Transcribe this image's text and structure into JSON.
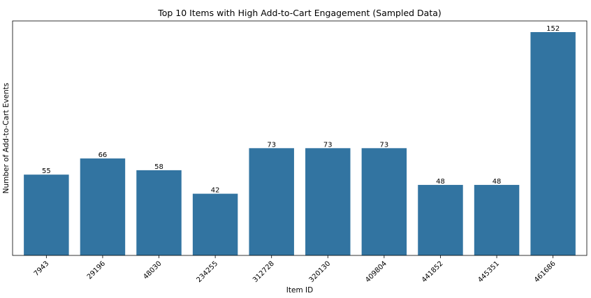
{
  "chart_data": {
    "type": "bar",
    "title": "Top 10 Items with High Add-to-Cart Engagement (Sampled Data)",
    "xlabel": "Item ID",
    "ylabel": "Number of Add-to-Cart Events",
    "categories": [
      "7943",
      "29196",
      "48030",
      "234255",
      "312728",
      "320130",
      "409804",
      "441852",
      "445351",
      "461686"
    ],
    "values": [
      55,
      66,
      58,
      42,
      73,
      73,
      73,
      48,
      48,
      152
    ],
    "ylim": [
      0,
      159.6
    ],
    "bar_color": "#3274a1",
    "grid": false,
    "y_ticks_shown": false,
    "x_tick_rotation": 45
  }
}
